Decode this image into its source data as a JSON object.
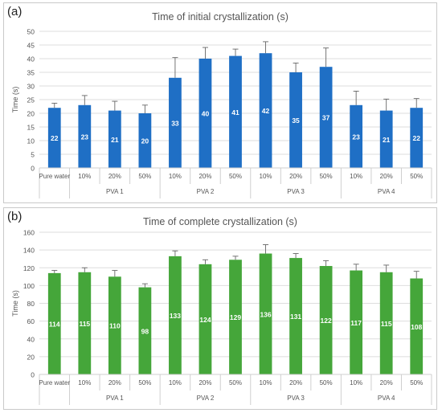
{
  "chart_data": [
    {
      "panel_label": "(a)",
      "type": "bar",
      "title": "Time of initial crystallization (s)",
      "ylabel": "Time (s)",
      "xlabel": "",
      "ylim": [
        0,
        50
      ],
      "ytick_step": 5,
      "color": "#1f6fc5",
      "categories": [
        "Pure water",
        "10%",
        "20%",
        "50%",
        "10%",
        "20%",
        "50%",
        "10%",
        "20%",
        "50%",
        "10%",
        "20%",
        "50%"
      ],
      "groups": [
        {
          "label": "PVA 1",
          "span": [
            1,
            3
          ]
        },
        {
          "label": "PVA 2",
          "span": [
            4,
            6
          ]
        },
        {
          "label": "PVA 3",
          "span": [
            7,
            9
          ]
        },
        {
          "label": "PVA 4",
          "span": [
            10,
            12
          ]
        }
      ],
      "values": [
        22,
        23,
        21,
        20,
        33,
        40,
        41,
        42,
        35,
        37,
        23,
        21,
        22
      ],
      "error_upper": [
        23.7,
        26.5,
        24.4,
        23.0,
        40.4,
        44.1,
        43.5,
        46.2,
        38.4,
        43.9,
        28.1,
        25.2,
        25.4
      ],
      "data_labels": [
        "22",
        "23",
        "21",
        "20",
        "33",
        "40",
        "41",
        "42",
        "35",
        "37",
        "23",
        "21",
        "22"
      ]
    },
    {
      "panel_label": "(b)",
      "type": "bar",
      "title": "Time of complete crystallization (s)",
      "ylabel": "Time (s)",
      "xlabel": "",
      "ylim": [
        0,
        160
      ],
      "ytick_step": 20,
      "color": "#45a63a",
      "categories": [
        "Pure water",
        "10%",
        "20%",
        "50%",
        "10%",
        "20%",
        "50%",
        "10%",
        "20%",
        "50%",
        "10%",
        "20%",
        "50%"
      ],
      "groups": [
        {
          "label": "PVA 1",
          "span": [
            1,
            3
          ]
        },
        {
          "label": "PVA 2",
          "span": [
            4,
            6
          ]
        },
        {
          "label": "PVA 3",
          "span": [
            7,
            9
          ]
        },
        {
          "label": "PVA 4",
          "span": [
            10,
            12
          ]
        }
      ],
      "values": [
        114,
        115,
        110,
        98,
        133,
        124,
        129,
        136,
        131,
        122,
        117,
        115,
        108
      ],
      "error_upper": [
        117,
        120,
        117,
        102,
        139,
        129,
        133,
        146,
        136,
        128,
        124,
        123,
        116
      ],
      "data_labels": [
        "114",
        "115",
        "110",
        "98",
        "133",
        "124",
        "129",
        "136",
        "131",
        "122",
        "117",
        "115",
        "108"
      ]
    }
  ]
}
